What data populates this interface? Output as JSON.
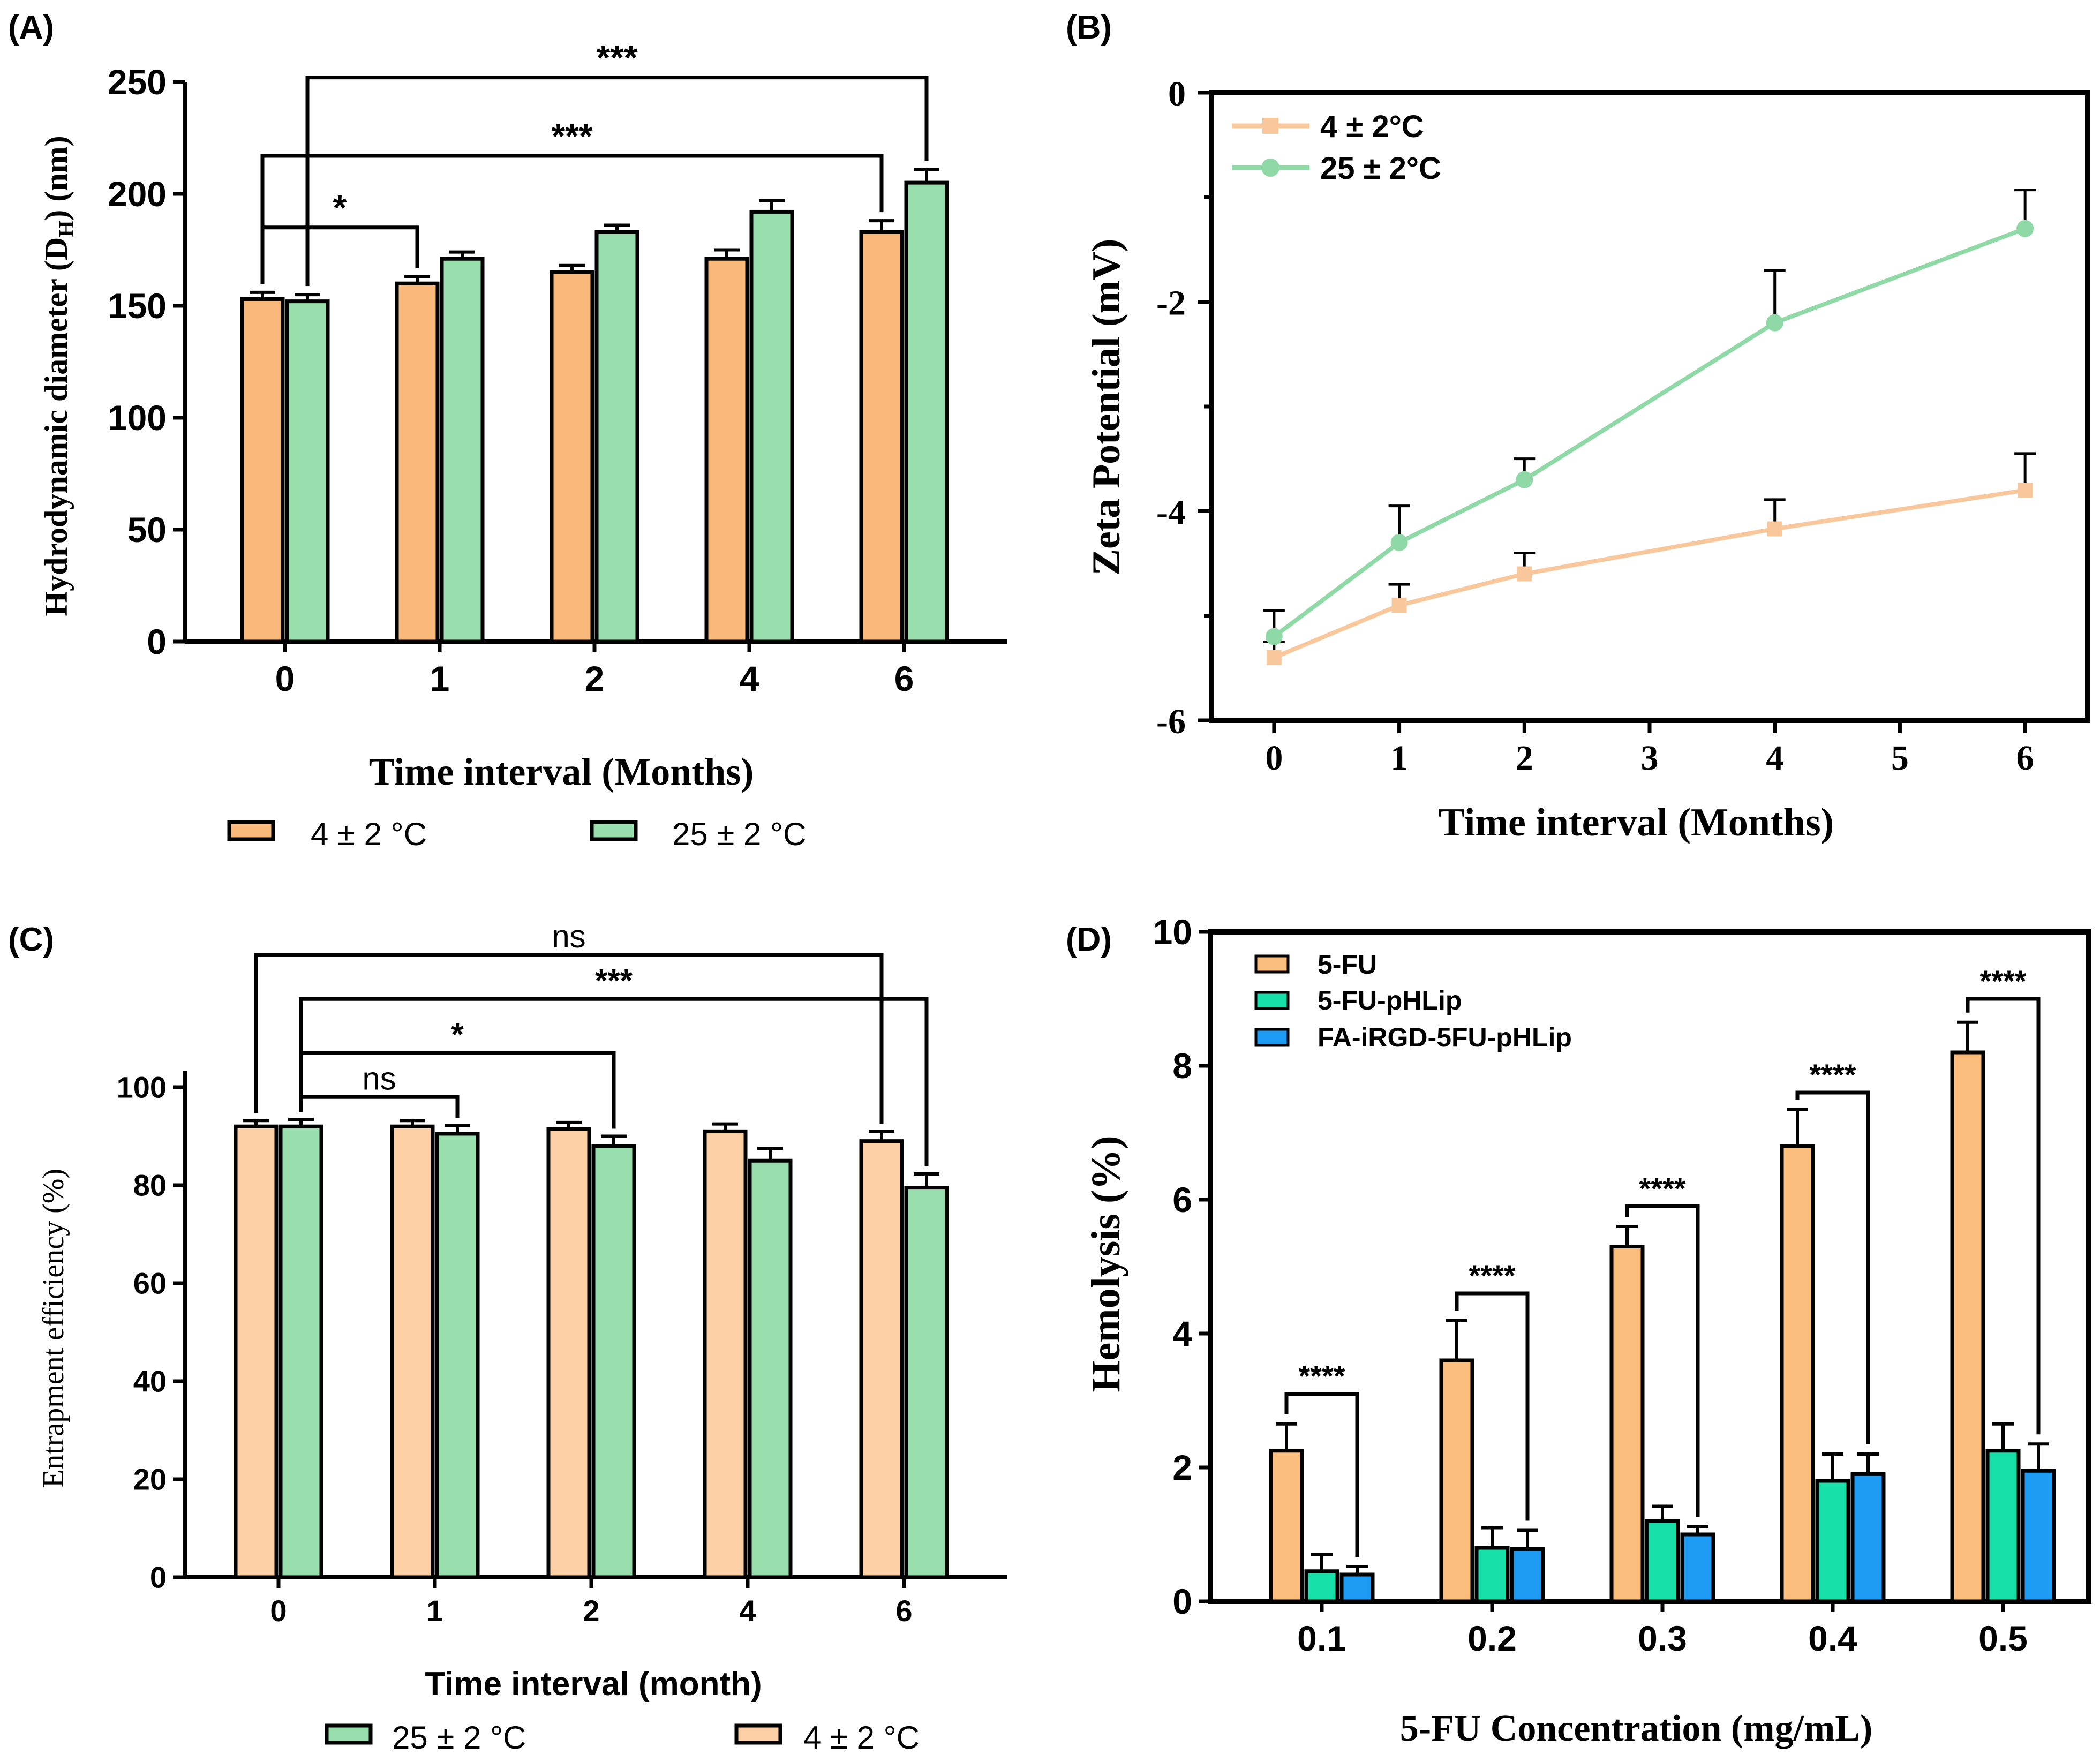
{
  "chart_data": [
    {
      "panel": "(A)",
      "type": "bar",
      "xlabel": "Time interval (Months)",
      "ylabel_main": "Hydrodynamic diameter (D",
      "ylabel_sub": "H",
      "ylabel_end": ") (nm)",
      "categories": [
        "0",
        "1",
        "2",
        "4",
        "6"
      ],
      "ylim": [
        0,
        250
      ],
      "yticks": [
        "0",
        "50",
        "100",
        "150",
        "200",
        "250"
      ],
      "series": [
        {
          "name": "4 ± 2 °C",
          "color": "#F9B97B",
          "values": [
            153,
            160,
            165,
            171,
            183
          ],
          "errors": [
            3,
            3,
            3,
            4,
            5
          ]
        },
        {
          "name": "25 ± 2 °C",
          "color": "#99DFAE",
          "values": [
            152,
            171,
            183,
            192,
            205
          ],
          "errors": [
            3,
            3,
            3,
            5,
            6
          ]
        }
      ],
      "legend": [
        {
          "label": "4 ± 2 °C",
          "color": "#F9B97B"
        },
        {
          "label": "25 ± 2 °C",
          "color": "#99DFAE"
        }
      ],
      "annotations": [
        {
          "label": "*",
          "from": {
            "cat": 0,
            "series": 0
          },
          "to": {
            "cat": 1,
            "series": 0
          },
          "level": 185
        },
        {
          "label": "***",
          "from": {
            "cat": 0,
            "series": 0
          },
          "to": {
            "cat": 4,
            "series": 0
          },
          "level": 217
        },
        {
          "label": "***",
          "from": {
            "cat": 0,
            "series": 1
          },
          "to": {
            "cat": 4,
            "series": 1
          },
          "level": 252
        }
      ]
    },
    {
      "panel": "(B)",
      "type": "line",
      "xlabel": "Time interval (Months)",
      "ylabel": "Zeta Potential (mV)",
      "xlim": [
        -0.5,
        6.5
      ],
      "xticks": [
        "0",
        "1",
        "2",
        "3",
        "4",
        "5",
        "6"
      ],
      "ylim": [
        -6,
        0
      ],
      "yticks": [
        "-6",
        "-4",
        "-2",
        "0"
      ],
      "series": [
        {
          "name": "4 ± 2°C",
          "color": "#F9C79C",
          "marker": "square",
          "x": [
            0,
            1,
            2,
            4,
            6
          ],
          "y": [
            -5.4,
            -4.9,
            -4.6,
            -4.17,
            -3.8
          ],
          "errors": [
            0.15,
            0.2,
            0.2,
            0.28,
            0.35
          ]
        },
        {
          "name": "25 ± 2°C",
          "color": "#8FD9A6",
          "marker": "circle",
          "x": [
            0,
            1,
            2,
            4,
            6
          ],
          "y": [
            -5.2,
            -4.3,
            -3.7,
            -2.2,
            -1.3
          ],
          "errors": [
            0.25,
            0.35,
            0.2,
            0.5,
            0.37
          ]
        }
      ]
    },
    {
      "panel": "(C)",
      "type": "bar",
      "xlabel": "Time interval (month)",
      "ylabel": "Entrapment efficiency (%)",
      "categories": [
        "0",
        "1",
        "2",
        "4",
        "6"
      ],
      "ylim": [
        0,
        100
      ],
      "yticks": [
        "0",
        "20",
        "40",
        "60",
        "80",
        "100"
      ],
      "series": [
        {
          "name": "4 ± 2 °C",
          "color": "#FDD1A5",
          "values": [
            92,
            92,
            91.5,
            91,
            89
          ],
          "errors": [
            1.2,
            1.2,
            1.3,
            1.5,
            2
          ]
        },
        {
          "name": "25 ± 2 °C",
          "color": "#99DFAE",
          "values": [
            92,
            90.5,
            88,
            85,
            79.5
          ],
          "errors": [
            1.4,
            1.7,
            2,
            2.5,
            2.8
          ]
        }
      ],
      "legend": [
        {
          "label": "25 ± 2 °C",
          "color": "#99DFAE"
        },
        {
          "label": "4 ± 2 °C",
          "color": "#FDD1A5"
        }
      ],
      "annotations": [
        {
          "label": "ns",
          "from": {
            "cat": 0,
            "series": 1
          },
          "to": {
            "cat": 1,
            "series": 1
          },
          "level": 98,
          "font": "sans"
        },
        {
          "label": "*",
          "from": {
            "cat": 0,
            "series": 1
          },
          "to": {
            "cat": 2,
            "series": 1
          },
          "level": 107,
          "font": "sansb"
        },
        {
          "label": "***",
          "from": {
            "cat": 0,
            "series": 1
          },
          "to": {
            "cat": 4,
            "series": 1
          },
          "level": 118,
          "font": "sansb"
        },
        {
          "label": "ns",
          "from": {
            "cat": 0,
            "series": 0
          },
          "to": {
            "cat": 4,
            "series": 0
          },
          "level": 127,
          "font": "sans"
        }
      ]
    },
    {
      "panel": "(D)",
      "type": "bar",
      "xlabel": "5-FU Concentration (mg/mL)",
      "ylabel": "Hemolysis (%)",
      "categories": [
        "0.1",
        "0.2",
        "0.3",
        "0.4",
        "0.5"
      ],
      "ylim": [
        0,
        10
      ],
      "yticks": [
        "0",
        "2",
        "4",
        "6",
        "8",
        "10"
      ],
      "series": [
        {
          "name": "5-FU",
          "color": "#FBBD7C",
          "values": [
            2.25,
            3.6,
            5.3,
            6.8,
            8.2
          ],
          "errors": [
            0.4,
            0.6,
            0.3,
            0.55,
            0.45
          ]
        },
        {
          "name": "5-FU-pHLip",
          "color": "#17E0A8",
          "values": [
            0.45,
            0.8,
            1.2,
            1.8,
            2.25
          ],
          "errors": [
            0.25,
            0.3,
            0.22,
            0.4,
            0.4
          ]
        },
        {
          "name": "FA-iRGD-5FU-pHLip",
          "color": "#1E9BF3",
          "values": [
            0.4,
            0.78,
            1.0,
            1.9,
            1.95
          ],
          "errors": [
            0.12,
            0.28,
            0.12,
            0.3,
            0.4
          ]
        }
      ],
      "legend": [
        {
          "label": "5-FU",
          "color": "#FBBD7C"
        },
        {
          "label": "5-FU-pHLip",
          "color": "#17E0A8"
        },
        {
          "label": "FA-iRGD-5FU-pHLip",
          "color": "#1E9BF3"
        }
      ],
      "annotations": [
        {
          "label": "****",
          "from": {
            "cat": 0,
            "series": 0
          },
          "to": {
            "cat": 0,
            "series": 2
          },
          "level": 3.1
        },
        {
          "label": "****",
          "from": {
            "cat": 1,
            "series": 0
          },
          "to": {
            "cat": 1,
            "series": 2
          },
          "level": 4.6
        },
        {
          "label": "****",
          "from": {
            "cat": 2,
            "series": 0
          },
          "to": {
            "cat": 2,
            "series": 2
          },
          "level": 5.9
        },
        {
          "label": "****",
          "from": {
            "cat": 3,
            "series": 0
          },
          "to": {
            "cat": 3,
            "series": 2
          },
          "level": 7.6
        },
        {
          "label": "****",
          "from": {
            "cat": 4,
            "series": 0
          },
          "to": {
            "cat": 4,
            "series": 2
          },
          "level": 9.0
        }
      ]
    }
  ]
}
